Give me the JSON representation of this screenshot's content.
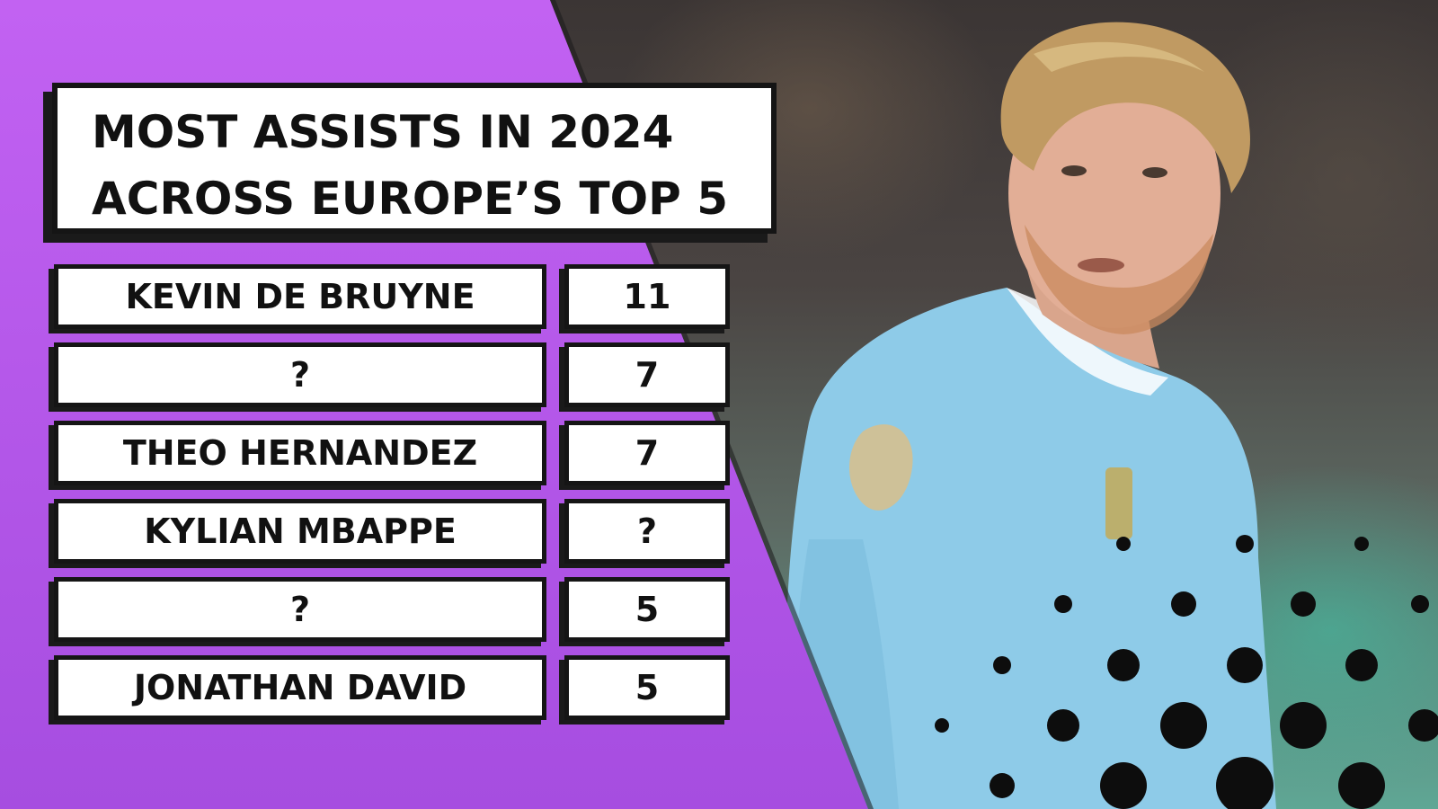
{
  "title": {
    "line1": "MOST ASSISTS IN 2024",
    "line2": "ACROSS EUROPE’S TOP 5"
  },
  "rows": [
    {
      "name": "KEVIN DE BRUYNE",
      "value": "11"
    },
    {
      "name": "?",
      "value": "7"
    },
    {
      "name": "THEO HERNANDEZ",
      "value": "7"
    },
    {
      "name": "KYLIAN MBAPPE",
      "value": "?"
    },
    {
      "name": "?",
      "value": "5"
    },
    {
      "name": "JONATHAN DAVID",
      "value": "5"
    }
  ],
  "colors": {
    "purple": "#bf5ff0",
    "purple_dark": "#9f45d8",
    "shirt": "#8ecbe8",
    "teal": "#4fd6bd",
    "dots": "#0d0d0d"
  }
}
